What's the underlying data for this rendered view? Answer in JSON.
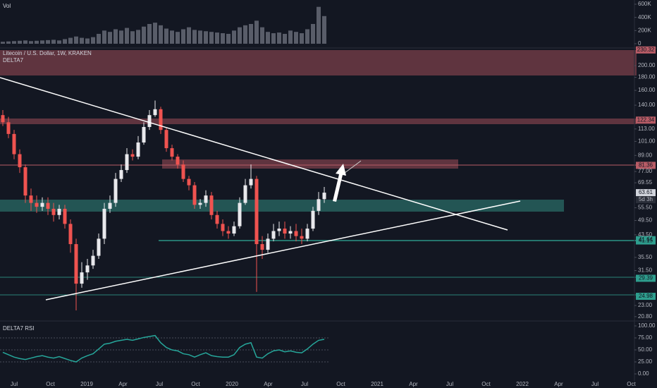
{
  "header": {
    "vol_label": "Vol",
    "symbol": "Litecoin / U.S. Dollar, 1W, KRAKEN",
    "indicator": "DELTA7",
    "rsi_label": "DELTA7 RSI"
  },
  "chart_data": [
    {
      "type": "candlestick",
      "log_scale": true,
      "ylim": [
        20.0,
        234.5
      ],
      "up_color": "#e8e8ec",
      "down_color": "#ef5350",
      "open": [
        128,
        120,
        108,
        90,
        80,
        62,
        58,
        56,
        58,
        55,
        52,
        55,
        48,
        40,
        28,
        31,
        33,
        36,
        42,
        55,
        58,
        72,
        78,
        90,
        88,
        100,
        115,
        128,
        135,
        112,
        95,
        88,
        82,
        72,
        68,
        57,
        58,
        62,
        52,
        48,
        45,
        44,
        47,
        58,
        68,
        72,
        40,
        38,
        42,
        45,
        46,
        44,
        45,
        43,
        42,
        46,
        54,
        60
      ],
      "high": [
        134,
        126,
        112,
        94,
        82,
        66,
        62,
        61,
        61,
        58,
        57,
        57,
        50,
        42,
        34,
        35,
        38,
        44,
        58,
        62,
        76,
        82,
        95,
        94,
        106,
        120,
        134,
        146,
        138,
        114,
        98,
        90,
        85,
        74,
        70,
        60,
        65,
        64,
        54,
        50,
        47,
        49,
        61,
        72,
        82,
        74,
        43,
        44,
        48,
        49,
        49,
        47,
        48,
        46,
        48,
        56,
        64,
        67
      ],
      "low": [
        116,
        104,
        86,
        76,
        58,
        54,
        53,
        54,
        52,
        49,
        50,
        46,
        37,
        22,
        27,
        29,
        32,
        35,
        40,
        53,
        56,
        70,
        76,
        85,
        86,
        98,
        112,
        126,
        108,
        92,
        85,
        79,
        70,
        65,
        55,
        55,
        56,
        50,
        46,
        43,
        42,
        43,
        46,
        57,
        66,
        26,
        35,
        37,
        41,
        43,
        42,
        42,
        41,
        40,
        41,
        45,
        52,
        58
      ],
      "close": [
        120,
        108,
        90,
        80,
        62,
        58,
        56,
        58,
        55,
        52,
        55,
        48,
        40,
        28,
        31,
        33,
        36,
        42,
        55,
        58,
        72,
        78,
        90,
        88,
        100,
        115,
        128,
        135,
        112,
        95,
        88,
        82,
        72,
        68,
        57,
        58,
        62,
        52,
        48,
        45,
        44,
        47,
        58,
        68,
        72,
        40,
        38,
        42,
        45,
        46,
        44,
        45,
        43,
        42,
        46,
        54,
        60,
        63.61
      ],
      "yticks": [
        {
          "value": 200,
          "label": "200.00"
        },
        {
          "value": 180,
          "label": "180.00"
        },
        {
          "value": 160,
          "label": "160.00"
        },
        {
          "value": 140,
          "label": "140.00"
        },
        {
          "value": 113,
          "label": "113.00"
        },
        {
          "value": 101,
          "label": "101.00"
        },
        {
          "value": 89,
          "label": "89.00"
        },
        {
          "value": 77,
          "label": "77.00"
        },
        {
          "value": 69.55,
          "label": "69.55"
        },
        {
          "value": 55.5,
          "label": "55.50"
        },
        {
          "value": 49.5,
          "label": "49.50"
        },
        {
          "value": 43.5,
          "label": "43.50"
        },
        {
          "value": 35.5,
          "label": "35.50"
        },
        {
          "value": 31.5,
          "label": "31.50"
        },
        {
          "value": 23,
          "label": "23.00"
        },
        {
          "value": 20.8,
          "label": "20.80"
        }
      ],
      "price_tags": [
        {
          "value": 230.32,
          "label": "230.32",
          "color": "#b85c66"
        },
        {
          "value": 122.34,
          "label": "122.34",
          "color": "#b85c66"
        },
        {
          "value": 81.36,
          "label": "81.36",
          "color": "#b85c66"
        },
        {
          "value": 63.61,
          "label": "63.61",
          "color": "#d1d4dc"
        },
        {
          "value": 41.64,
          "label": "41.64",
          "color": "#2e9e8e"
        },
        {
          "value": 41.15,
          "label": "41.15",
          "color": "#2e9e8e"
        },
        {
          "value": 29.39,
          "label": "29.39",
          "color": "#2e9e8e"
        },
        {
          "value": 24.98,
          "label": "24.98",
          "color": "#2e9e8e"
        }
      ],
      "countdown": "5d 3h",
      "xtick_labels": [
        "Jul",
        "Oct",
        "2019",
        "Apr",
        "Jul",
        "Oct",
        "2020",
        "Apr",
        "Jul",
        "Oct",
        "2021",
        "Apr",
        "Jul",
        "Oct",
        "2022",
        "Apr",
        "Jul",
        "Oct"
      ]
    },
    {
      "type": "bar",
      "color": "#6b6f7c",
      "ylim": [
        0,
        664000
      ],
      "values": [
        30000,
        35000,
        40000,
        45000,
        50000,
        40000,
        45000,
        50000,
        55000,
        60000,
        50000,
        70000,
        90000,
        110000,
        90000,
        80000,
        100000,
        150000,
        200000,
        180000,
        220000,
        200000,
        240000,
        190000,
        210000,
        260000,
        300000,
        320000,
        280000,
        230000,
        200000,
        180000,
        220000,
        250000,
        210000,
        200000,
        190000,
        180000,
        170000,
        160000,
        150000,
        200000,
        250000,
        280000,
        300000,
        350000,
        250000,
        180000,
        160000,
        170000,
        150000,
        200000,
        180000,
        160000,
        220000,
        300000,
        560000,
        420000
      ],
      "yticks": [
        {
          "value": 600000,
          "label": "600K"
        },
        {
          "value": 400000,
          "label": "400K"
        },
        {
          "value": 200000,
          "label": "200K"
        },
        0
      ]
    },
    {
      "type": "line",
      "color": "#26a69a",
      "ylim": [
        -14.7,
        110.3
      ],
      "values": [
        45,
        40,
        35,
        32,
        30,
        33,
        36,
        38,
        35,
        33,
        36,
        32,
        28,
        25,
        33,
        38,
        42,
        52,
        62,
        64,
        68,
        70,
        72,
        70,
        73,
        76,
        78,
        80,
        65,
        55,
        50,
        48,
        42,
        40,
        35,
        40,
        44,
        38,
        36,
        35,
        35,
        40,
        55,
        62,
        65,
        35,
        33,
        42,
        48,
        50,
        46,
        48,
        45,
        44,
        52,
        62,
        70,
        72
      ],
      "yticks": [
        {
          "value": 100,
          "label": "100.00"
        },
        {
          "value": 75,
          "label": "75.00"
        },
        {
          "value": 50,
          "label": "50.00"
        },
        {
          "value": 25,
          "label": "25.00"
        },
        {
          "value": 0,
          "label": "0.00"
        }
      ]
    }
  ]
}
